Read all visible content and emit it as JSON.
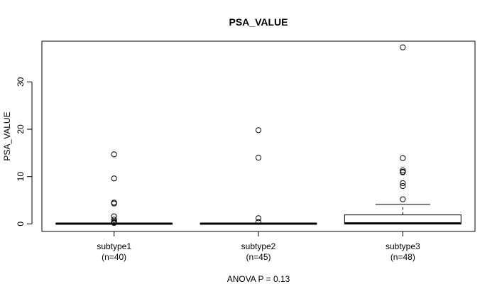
{
  "chart_data": {
    "type": "boxplot",
    "title": "PSA_VALUE",
    "ylabel": "PSA_VALUE",
    "xlabel": "ANOVA P = 0.13",
    "ylim": [
      -1.6,
      38.6
    ],
    "yticks": [
      0,
      10,
      20,
      30
    ],
    "groups": [
      {
        "name": "subtype1",
        "n_label": "(n=40)",
        "stats": {
          "lower_whisker": 0.0,
          "q1": 0.02,
          "median": 0.05,
          "q3": 0.1,
          "upper_whisker": 0.2
        },
        "outliers": [
          14.7,
          9.6,
          4.5,
          4.3,
          1.6,
          0.9,
          0.5,
          0.3,
          0.2
        ]
      },
      {
        "name": "subtype2",
        "n_label": "(n=45)",
        "stats": {
          "lower_whisker": 0.0,
          "q1": 0.02,
          "median": 0.05,
          "q3": 0.1,
          "upper_whisker": 0.15
        },
        "outliers": [
          19.8,
          14.0,
          1.2,
          0.4
        ]
      },
      {
        "name": "subtype3",
        "n_label": "(n=48)",
        "stats": {
          "lower_whisker": 0.0,
          "q1": 0.02,
          "median": 0.1,
          "q3": 1.9,
          "upper_whisker": 4.1
        },
        "outliers": [
          37.3,
          13.9,
          11.3,
          11.0,
          10.9,
          8.6,
          8.0,
          5.2
        ]
      }
    ]
  }
}
